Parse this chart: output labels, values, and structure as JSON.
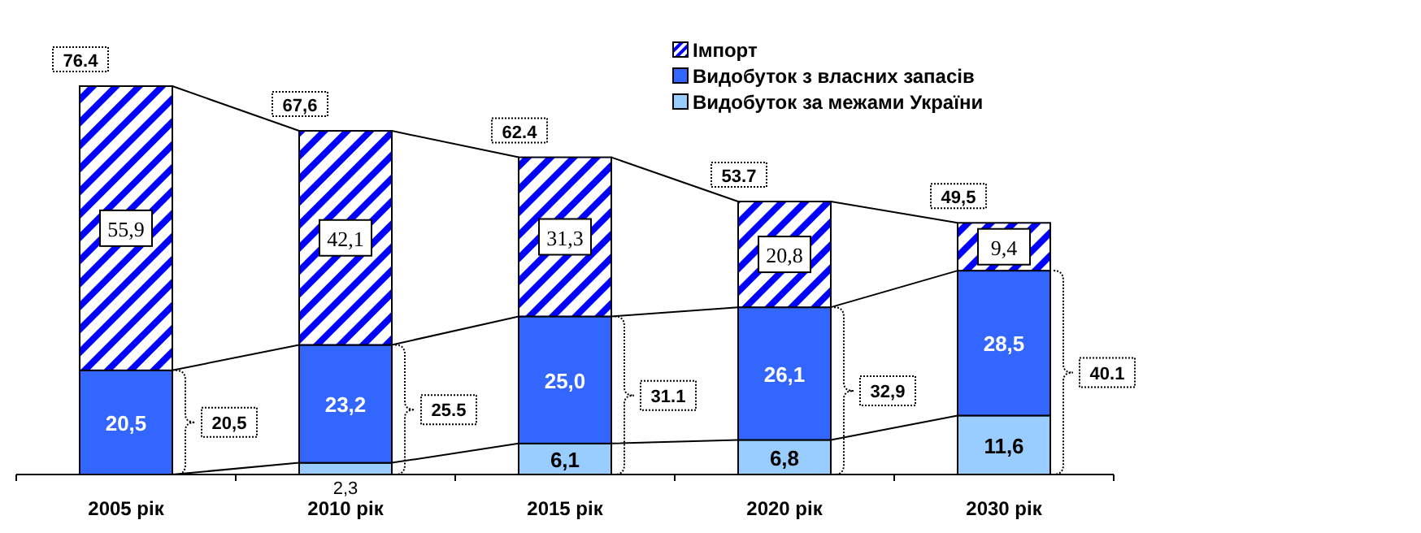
{
  "chart_data": {
    "type": "bar",
    "stacked": true,
    "legend": "top",
    "categories": [
      "2005 рік",
      "2010 рік",
      "2015 рік",
      "2020 рік",
      "2030 рік"
    ],
    "series": [
      {
        "name": "Видобуток за межами України",
        "color": "#99ccff",
        "values": [
          0,
          2.3,
          6.1,
          6.8,
          11.6
        ],
        "value_labels": [
          null,
          "2,3",
          "6,1",
          "6,8",
          "11,6"
        ]
      },
      {
        "name": "Видобуток з власних запасів",
        "color": "#3366ff",
        "values": [
          20.5,
          23.2,
          25.0,
          26.1,
          28.5
        ],
        "value_labels": [
          "20,5",
          "23,2",
          "25,0",
          "26,1",
          "28,5"
        ]
      },
      {
        "name": "Імпорт",
        "color": "#0000ff",
        "values": [
          55.9,
          42.1,
          31.3,
          20.8,
          9.4
        ],
        "value_labels": [
          "55,9",
          "42,1",
          "31,3",
          "20,8",
          "9,4"
        ]
      }
    ],
    "totals": [
      "76.4",
      "67,6",
      "62.4",
      "53.7",
      "49,5"
    ],
    "annotations": [
      "20,5",
      "25.5",
      "31.1",
      "32,9",
      "40.1"
    ]
  }
}
